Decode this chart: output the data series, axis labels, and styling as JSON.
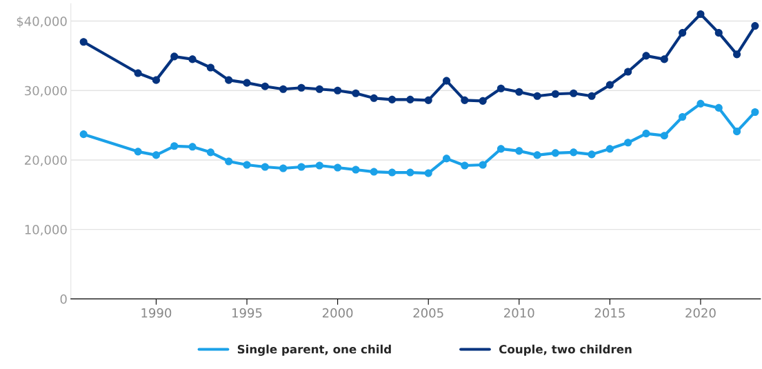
{
  "chart_data": {
    "type": "line",
    "x": [
      1986,
      1989,
      1990,
      1991,
      1992,
      1993,
      1994,
      1995,
      1996,
      1997,
      1998,
      1999,
      2000,
      2001,
      2002,
      2003,
      2004,
      2005,
      2006,
      2007,
      2008,
      2009,
      2010,
      2011,
      2012,
      2013,
      2014,
      2015,
      2016,
      2017,
      2018,
      2019,
      2020,
      2021,
      2022,
      2023
    ],
    "series": [
      {
        "name": "Single parent, one child",
        "color": "#1ba1e8",
        "values": [
          23700,
          21200,
          20700,
          22000,
          21900,
          21100,
          19800,
          19300,
          19000,
          18800,
          19000,
          19200,
          18900,
          18600,
          18300,
          18200,
          18200,
          18100,
          20200,
          19200,
          19300,
          21600,
          21300,
          20700,
          21000,
          21100,
          20800,
          21600,
          22500,
          23800,
          23500,
          26200,
          28100,
          27500,
          24100,
          26900
        ]
      },
      {
        "name": "Couple, two children",
        "color": "#05337f",
        "values": [
          37000,
          32500,
          31500,
          34900,
          34500,
          33300,
          31500,
          31100,
          30600,
          30200,
          30400,
          30200,
          30000,
          29600,
          28900,
          28700,
          28700,
          28600,
          31400,
          28600,
          28500,
          30300,
          29800,
          29200,
          29500,
          29600,
          29200,
          30800,
          32700,
          35000,
          34500,
          38300,
          41000,
          38300,
          35200,
          39300
        ]
      }
    ],
    "xlim": [
      1985.3,
      2023.3
    ],
    "xticks": [
      1990,
      1995,
      2000,
      2005,
      2010,
      2015,
      2020
    ],
    "ylim": [
      0,
      42500
    ],
    "yticks": [
      0,
      {
        "value": 10000,
        "label": "10,000"
      },
      {
        "value": 20000,
        "label": "20,000"
      },
      {
        "value": 30000,
        "label": "30,000"
      },
      {
        "value": 40000,
        "label": "$40,000"
      }
    ],
    "grid": "y",
    "legend": "bottom",
    "marker": "circle",
    "line_style": "solid"
  }
}
